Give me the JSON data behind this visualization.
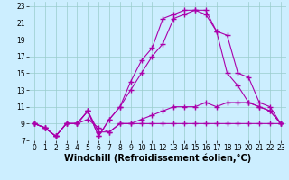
{
  "xlabel": "Windchill (Refroidissement éolien,°C)",
  "background_color": "#cceeff",
  "line_color": "#aa00aa",
  "marker": "+",
  "markersize": 4,
  "markeredgewidth": 1.0,
  "linewidth": 0.8,
  "xlim": [
    -0.5,
    23.5
  ],
  "ylim": [
    7,
    23.5
  ],
  "xticks": [
    0,
    1,
    2,
    3,
    4,
    5,
    6,
    7,
    8,
    9,
    10,
    11,
    12,
    13,
    14,
    15,
    16,
    17,
    18,
    19,
    20,
    21,
    22,
    23
  ],
  "yticks": [
    7,
    9,
    11,
    13,
    15,
    17,
    19,
    21,
    23
  ],
  "grid_color": "#99cccc",
  "tick_fontsize": 5.5,
  "xlabel_fontsize": 7.0,
  "series1_x": [
    0,
    1,
    2,
    3,
    4,
    5,
    6,
    7,
    8,
    9,
    10,
    11,
    12,
    13,
    14,
    15,
    16,
    17,
    18,
    19,
    20,
    21,
    22,
    23
  ],
  "series1_y": [
    9.0,
    8.5,
    7.5,
    9.0,
    9.0,
    9.5,
    8.5,
    8.0,
    9.0,
    9.0,
    9.0,
    9.0,
    9.0,
    9.0,
    9.0,
    9.0,
    9.0,
    9.0,
    9.0,
    9.0,
    9.0,
    9.0,
    9.0,
    9.0
  ],
  "series2_x": [
    0,
    1,
    2,
    3,
    4,
    5,
    6,
    7,
    8,
    9,
    10,
    11,
    12,
    13,
    14,
    15,
    16,
    17,
    18,
    19,
    20,
    21,
    22,
    23
  ],
  "series2_y": [
    9.0,
    8.5,
    7.5,
    9.0,
    9.0,
    10.5,
    8.0,
    8.0,
    9.0,
    9.0,
    9.5,
    10.0,
    10.5,
    11.0,
    11.0,
    11.0,
    11.5,
    11.0,
    11.5,
    11.5,
    11.5,
    11.0,
    10.5,
    9.0
  ],
  "series3_x": [
    0,
    1,
    2,
    3,
    4,
    5,
    6,
    7,
    8,
    9,
    10,
    11,
    12,
    13,
    14,
    15,
    16,
    17,
    18,
    19,
    20,
    21,
    22,
    23
  ],
  "series3_y": [
    9.0,
    8.5,
    7.5,
    9.0,
    9.0,
    10.5,
    7.5,
    9.5,
    11.0,
    13.0,
    15.0,
    17.0,
    18.5,
    21.5,
    22.0,
    22.5,
    22.0,
    20.0,
    19.5,
    15.0,
    14.5,
    11.5,
    11.0,
    9.0
  ],
  "series4_x": [
    0,
    1,
    2,
    3,
    4,
    5,
    6,
    7,
    8,
    9,
    10,
    11,
    12,
    13,
    14,
    15,
    16,
    17,
    18,
    19,
    20,
    21,
    22,
    23
  ],
  "series4_y": [
    9.0,
    8.5,
    7.5,
    9.0,
    9.0,
    10.5,
    7.5,
    9.5,
    11.0,
    14.0,
    16.5,
    18.0,
    21.5,
    22.0,
    22.5,
    22.5,
    22.5,
    20.0,
    15.0,
    13.5,
    11.5,
    11.0,
    10.5,
    9.0
  ]
}
